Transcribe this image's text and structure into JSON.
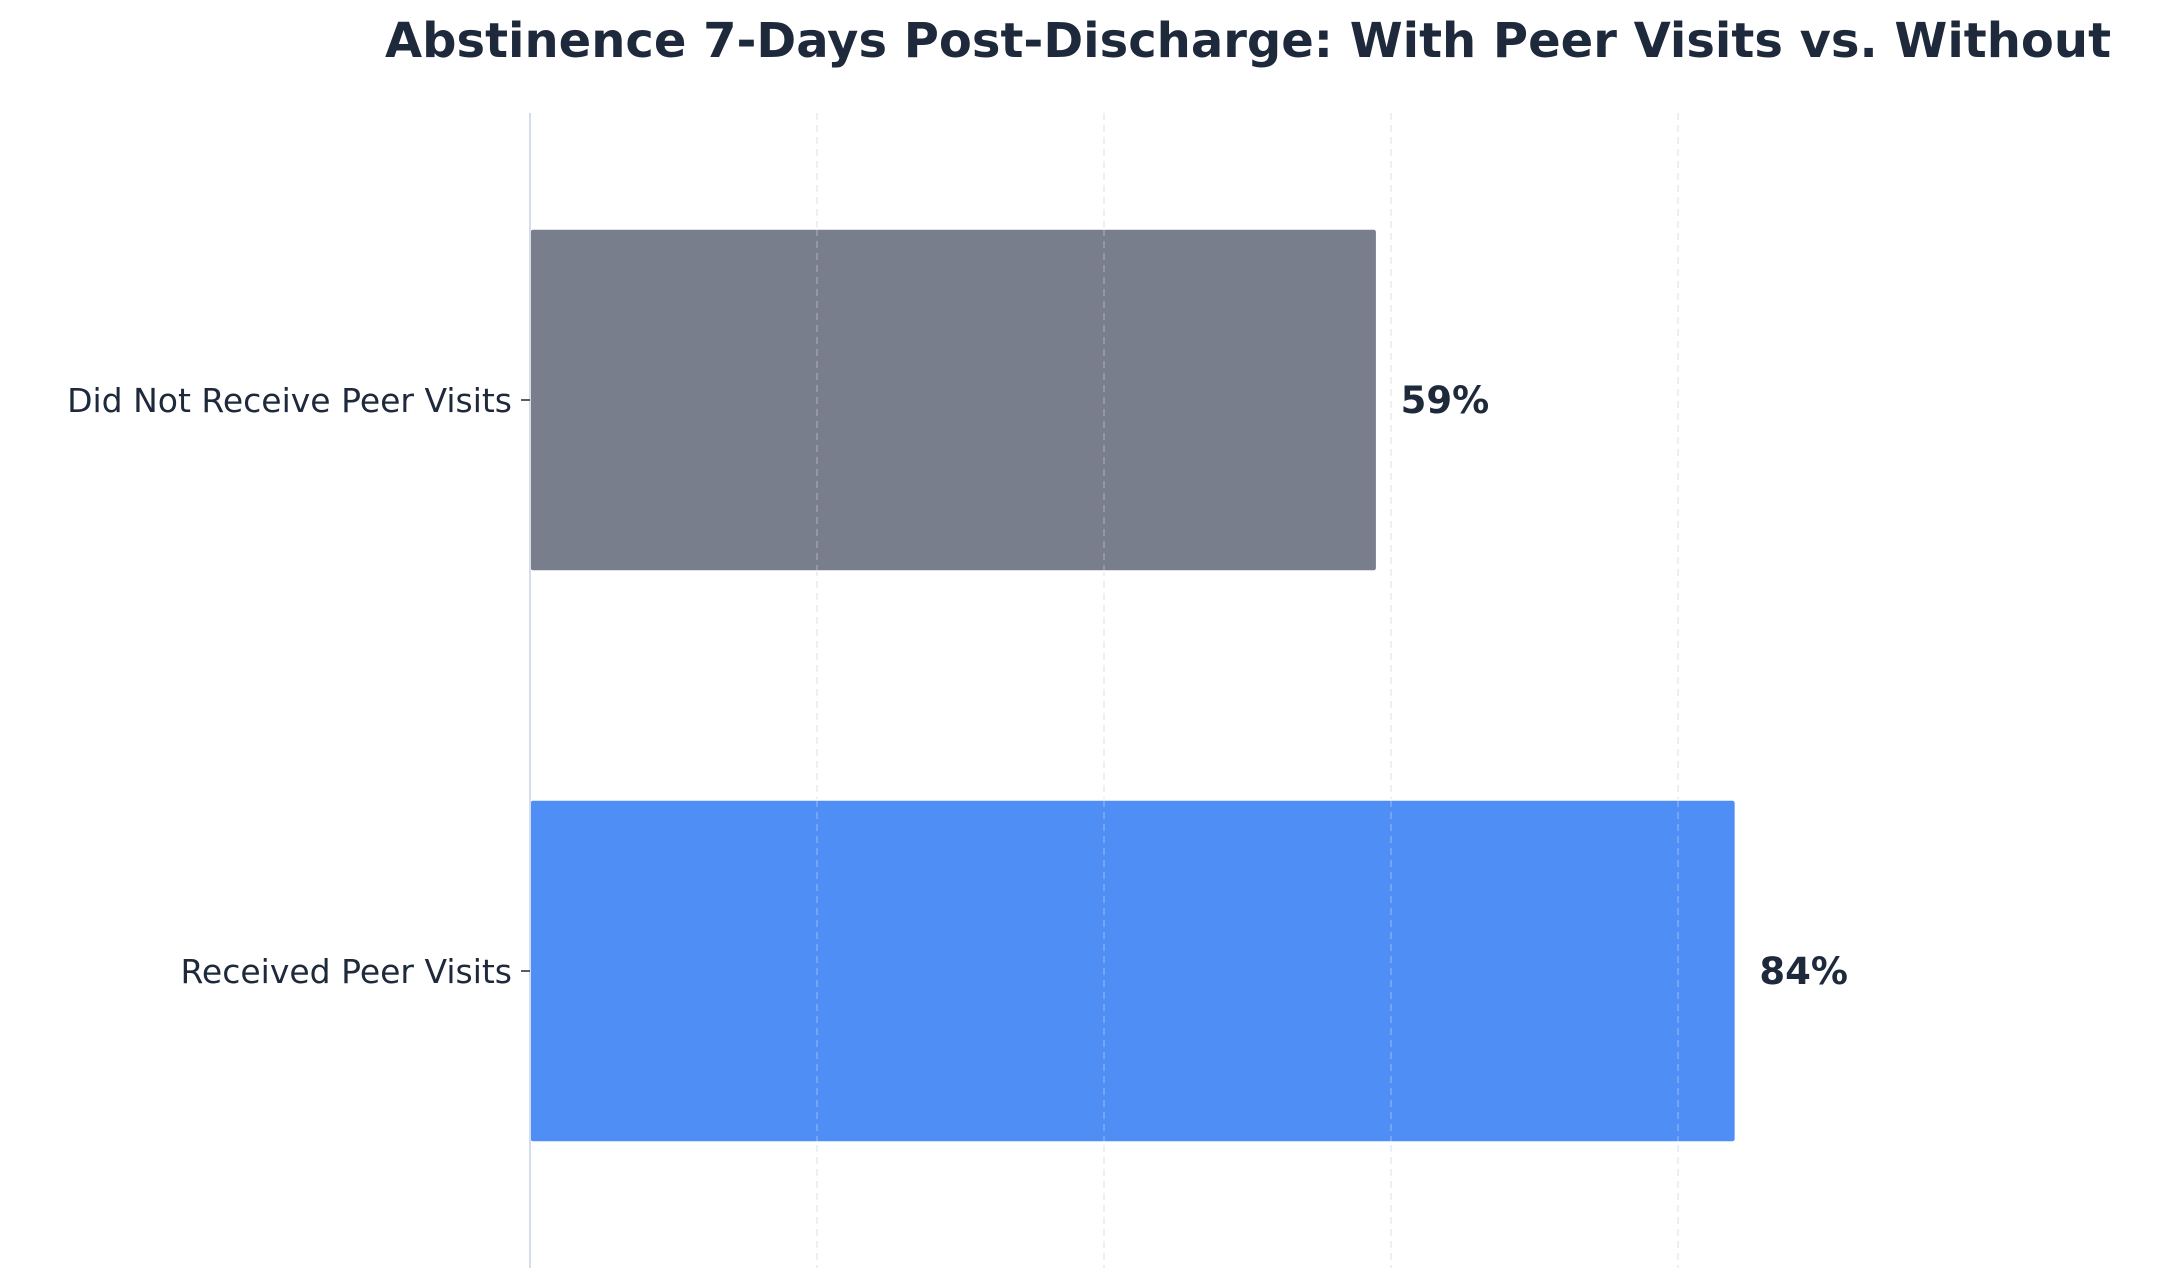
{
  "chart_data": {
    "type": "bar",
    "orientation": "horizontal",
    "title": "Abstinence 7-Days Post-Discharge: With Peer Visits vs. Without",
    "xlabel": "",
    "ylabel": "",
    "categories": [
      "Did Not Receive Peer Visits",
      "Received Peer Visits"
    ],
    "values": [
      59,
      84
    ],
    "value_labels": [
      "59%",
      "84%"
    ],
    "bar_colors": [
      "#787e8b",
      "#4f8ef5"
    ],
    "xlim": [
      0,
      100
    ],
    "grid": "x-dashed",
    "legend": "none"
  }
}
